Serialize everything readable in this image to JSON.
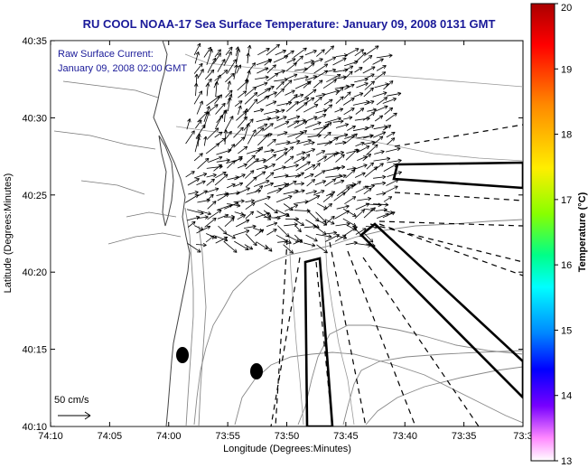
{
  "title": "RU COOL  NOAA-17  Sea Surface Temperature:  January 09, 2008 0131 GMT",
  "overlay": {
    "line1": "Raw Surface Current:",
    "line2": "January 09, 2008 02:00 GMT"
  },
  "axes": {
    "xlabel": "Longitude (Degrees:Minutes)",
    "ylabel": "Latitude (Degrees:Minutes)",
    "xticks": [
      "74:10",
      "74:05",
      "74:00",
      "73:55",
      "73:50",
      "73:45",
      "73:40",
      "73:35",
      "73:3"
    ],
    "yticks": [
      "40:35",
      "40:30",
      "40:25",
      "40:20",
      "40:15",
      "40:10"
    ]
  },
  "scale": {
    "label": "50 cm/s"
  },
  "colorbar": {
    "label": "Temperature (°C)",
    "ticks": [
      "20",
      "19",
      "18",
      "17",
      "16",
      "15",
      "14",
      "13"
    ],
    "colors": [
      "#aa0000",
      "#ff0000",
      "#ff8800",
      "#ffee00",
      "#88ff00",
      "#00ff88",
      "#00ffff",
      "#0088ff",
      "#0000ff",
      "#7700ff",
      "#ff88ff",
      "#ffffff"
    ]
  }
}
